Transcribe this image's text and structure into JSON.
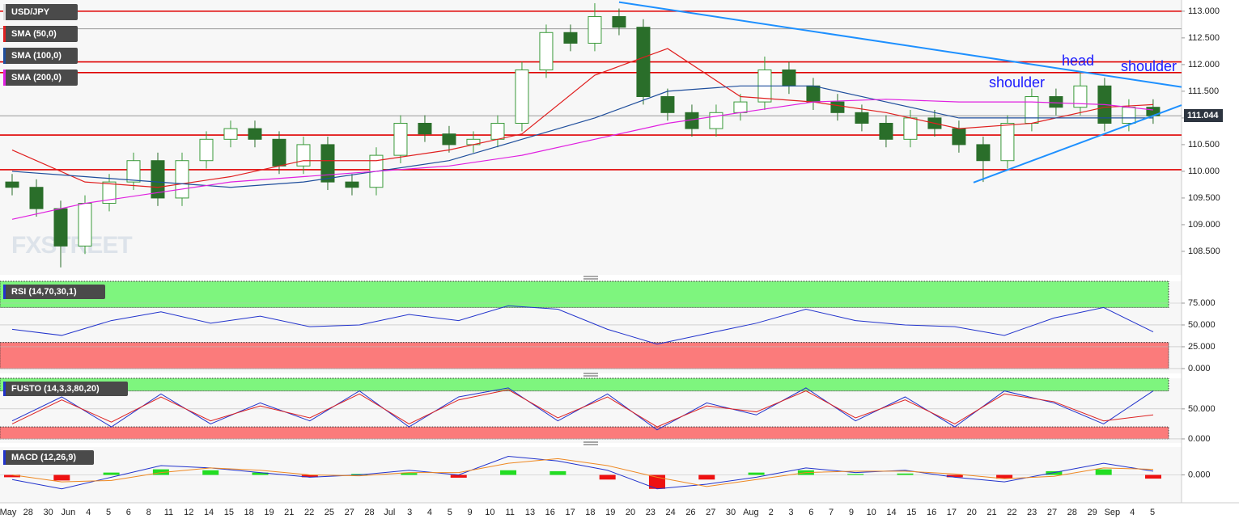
{
  "chart_data": [
    {
      "type": "candlestick",
      "title": "USD/JPY",
      "watermark": "FXSTREET",
      "xlim": [
        -0.5,
        48.17
      ],
      "ylim": [
        108.06,
        113.21
      ],
      "yticks": [
        {
          "value": 113,
          "label": "113.000"
        },
        {
          "value": 112.5,
          "label": "112.500"
        },
        {
          "value": 112,
          "label": "112.000"
        },
        {
          "value": 111.5,
          "label": "111.500"
        },
        {
          "value": 111,
          "label": "111.000"
        },
        {
          "value": 110.5,
          "label": "110.500"
        },
        {
          "value": 110,
          "label": "110.000"
        },
        {
          "value": 109.5,
          "label": "109.500"
        },
        {
          "value": 109,
          "label": "109.000"
        },
        {
          "value": 108.5,
          "label": "108.500"
        }
      ],
      "up_color": "#3a9a3a",
      "down_color": "#2a6e2a",
      "open": [
        109.8,
        109.7,
        109.3,
        108.6,
        109.4,
        109.8,
        110.2,
        109.5,
        110.2,
        110.6,
        110.8,
        110.6,
        110.1,
        110.5,
        109.8,
        109.7,
        110.3,
        110.9,
        110.7,
        110.5,
        110.6,
        110.9,
        111.9,
        112.6,
        112.4,
        112.9,
        112.7,
        111.4,
        111.1,
        110.8,
        111.1,
        111.3,
        111.9,
        111.6,
        111.3,
        111.1,
        110.9,
        110.6,
        111.0,
        110.8,
        110.5,
        110.2,
        110.9,
        111.4,
        111.2,
        111.6,
        110.9,
        111.2
      ],
      "high": [
        109.95,
        109.85,
        109.45,
        109.55,
        109.95,
        110.35,
        110.35,
        110.35,
        110.75,
        110.95,
        110.95,
        110.75,
        110.65,
        110.65,
        109.95,
        110.45,
        111.05,
        111.05,
        110.85,
        110.75,
        111.05,
        112.05,
        112.75,
        112.75,
        113.15,
        113.05,
        112.85,
        111.55,
        111.25,
        111.25,
        111.45,
        112.15,
        112.05,
        111.75,
        111.45,
        111.25,
        111.05,
        111.15,
        111.15,
        110.95,
        110.65,
        111.05,
        111.55,
        111.55,
        111.85,
        111.75,
        111.35,
        111.35
      ],
      "low": [
        109.55,
        109.15,
        108.2,
        108.45,
        109.25,
        109.65,
        109.35,
        109.35,
        110.05,
        110.45,
        110.45,
        109.95,
        109.95,
        109.65,
        109.55,
        109.55,
        110.15,
        110.55,
        110.35,
        110.35,
        110.45,
        110.75,
        111.75,
        112.25,
        112.25,
        112.55,
        111.25,
        110.95,
        110.65,
        110.65,
        110.95,
        111.15,
        111.45,
        111.15,
        110.95,
        110.75,
        110.45,
        110.45,
        110.65,
        110.35,
        109.8,
        110.05,
        110.75,
        111.05,
        111.05,
        110.75,
        110.75,
        110.89
      ],
      "close": [
        109.7,
        109.3,
        108.6,
        109.4,
        109.8,
        110.2,
        109.5,
        110.2,
        110.6,
        110.8,
        110.6,
        110.1,
        110.5,
        109.8,
        109.7,
        110.3,
        110.9,
        110.7,
        110.5,
        110.6,
        110.9,
        111.9,
        112.6,
        112.4,
        112.9,
        112.7,
        111.4,
        111.1,
        110.8,
        111.1,
        111.3,
        111.9,
        111.6,
        111.3,
        111.1,
        110.9,
        110.6,
        111.0,
        110.8,
        110.5,
        110.2,
        110.9,
        111.4,
        111.2,
        111.6,
        110.9,
        111.2,
        111.04
      ],
      "last_price": {
        "value": 111.044,
        "label": "111.044"
      },
      "overlay_x": [
        0,
        3,
        6,
        9,
        12,
        15,
        18,
        21,
        24,
        27,
        30,
        33,
        36,
        39,
        42,
        45,
        47
      ],
      "series": [
        {
          "name": "SMA (50,0)",
          "color": "#e02020",
          "values": [
            110.4,
            109.8,
            109.7,
            109.9,
            110.2,
            110.2,
            110.4,
            110.7,
            111.8,
            112.3,
            111.4,
            111.3,
            111.1,
            110.8,
            110.9,
            111.2,
            111.25
          ]
        },
        {
          "name": "SMA (100,0)",
          "color": "#1f4e9c",
          "values": [
            110.0,
            109.9,
            109.8,
            109.7,
            109.8,
            110.0,
            110.2,
            110.6,
            111.0,
            111.5,
            111.6,
            111.6,
            111.3,
            111.0,
            111.0,
            111.0,
            111.0
          ]
        },
        {
          "name": "SMA (200,0)",
          "color": "#e020e0",
          "values": [
            109.1,
            109.4,
            109.6,
            109.8,
            109.9,
            110.0,
            110.1,
            110.3,
            110.6,
            110.9,
            111.1,
            111.3,
            111.35,
            111.3,
            111.3,
            111.25,
            111.15
          ]
        }
      ],
      "hlines": {
        "color": "#e00000",
        "values": [
          113.0,
          112.05,
          111.85,
          110.68,
          110.03
        ]
      },
      "ref_lines": {
        "color": "#999999",
        "values": [
          112.67,
          111.04
        ]
      },
      "trendlines": {
        "color": "#1e90ff",
        "lines": [
          {
            "x": [
              25,
              48.17
            ],
            "y": [
              113.17,
              111.58
            ]
          },
          {
            "x": [
              39.6,
              48.17
            ],
            "y": [
              109.79,
              111.24
            ]
          }
        ]
      },
      "annotations": {
        "color": "#1a1aff",
        "texts": [
          "shoulder",
          "head",
          "shoulder"
        ]
      },
      "x_labels": [
        "May",
        "28",
        "30",
        "Jun",
        "4",
        "5",
        "6",
        "8",
        "11",
        "12",
        "14",
        "15",
        "18",
        "19",
        "21",
        "22",
        "25",
        "27",
        "28",
        "Jul",
        "3",
        "4",
        "5",
        "9",
        "10",
        "11",
        "13",
        "16",
        "17",
        "18",
        "19",
        "20",
        "23",
        "24",
        "26",
        "27",
        "30",
        "Aug",
        "2",
        "3",
        "6",
        "7",
        "9",
        "10",
        "14",
        "15",
        "16",
        "17",
        "20",
        "21",
        "22",
        "23",
        "27",
        "28",
        "29",
        "Sep",
        "4",
        "5"
      ]
    },
    {
      "type": "oscillator",
      "title": "RSI (14,70,30,1)",
      "ylim": [
        -5.6,
        100
      ],
      "yticks": [
        {
          "value": 75,
          "label": "75.000"
        },
        {
          "value": 50,
          "label": "50.000"
        },
        {
          "value": 25,
          "label": "25.000"
        },
        {
          "value": 0,
          "label": "0.000"
        }
      ],
      "overbought": 70,
      "oversold": 30,
      "series": [
        {
          "color": "#2233cc",
          "values": [
            45,
            38,
            55,
            65,
            52,
            60,
            48,
            50,
            62,
            55,
            72,
            68,
            45,
            28,
            40,
            52,
            68,
            55,
            50,
            48,
            38,
            58,
            70,
            42
          ]
        }
      ]
    },
    {
      "type": "oscillator",
      "title": "FUSTO (14,3,3,80,20)",
      "ylim": [
        -6.8,
        101
      ],
      "yticks": [
        {
          "value": 50,
          "label": "50.000"
        },
        {
          "value": 0,
          "label": "0.000"
        }
      ],
      "overbought": 80,
      "oversold": 20,
      "series": [
        {
          "color": "#2233cc",
          "values": [
            30,
            70,
            20,
            75,
            25,
            60,
            30,
            80,
            20,
            70,
            85,
            30,
            75,
            15,
            60,
            40,
            85,
            30,
            70,
            20,
            80,
            60,
            25,
            80
          ]
        },
        {
          "color": "#dd2222",
          "values": [
            25,
            65,
            28,
            70,
            30,
            55,
            35,
            75,
            25,
            65,
            82,
            35,
            70,
            20,
            55,
            45,
            80,
            35,
            65,
            25,
            75,
            62,
            30,
            40
          ]
        }
      ]
    },
    {
      "type": "macd",
      "title": "MACD (12,26,9)",
      "ylim": [
        -0.6,
        0.6
      ],
      "yticks": [
        {
          "value": 0,
          "label": "0.000"
        }
      ],
      "hist_colors": {
        "positive": "#22dd22",
        "negative": "#ee1111"
      },
      "histogram": [
        -0.05,
        -0.12,
        0.05,
        0.12,
        0.1,
        0.05,
        -0.05,
        0.02,
        0.04,
        -0.06,
        0.1,
        0.08,
        -0.1,
        -0.3,
        -0.1,
        0.05,
        0.1,
        0.02,
        0.03,
        -0.05,
        -0.08,
        0.08,
        0.12,
        -0.08
      ],
      "series": [
        {
          "color": "#2233cc",
          "values": [
            -0.1,
            -0.3,
            -0.05,
            0.2,
            0.15,
            0.05,
            -0.05,
            0.0,
            0.1,
            0.0,
            0.4,
            0.3,
            0.1,
            -0.3,
            -0.2,
            -0.05,
            0.15,
            0.05,
            0.1,
            -0.05,
            -0.15,
            0.05,
            0.25,
            0.08
          ]
        },
        {
          "color": "#ee8822",
          "values": [
            0.0,
            -0.15,
            -0.12,
            0.05,
            0.15,
            0.1,
            0.0,
            -0.02,
            0.05,
            0.05,
            0.25,
            0.35,
            0.2,
            -0.05,
            -0.25,
            -0.1,
            0.05,
            0.08,
            0.08,
            0.02,
            -0.08,
            -0.03,
            0.15,
            0.12
          ]
        }
      ]
    }
  ]
}
